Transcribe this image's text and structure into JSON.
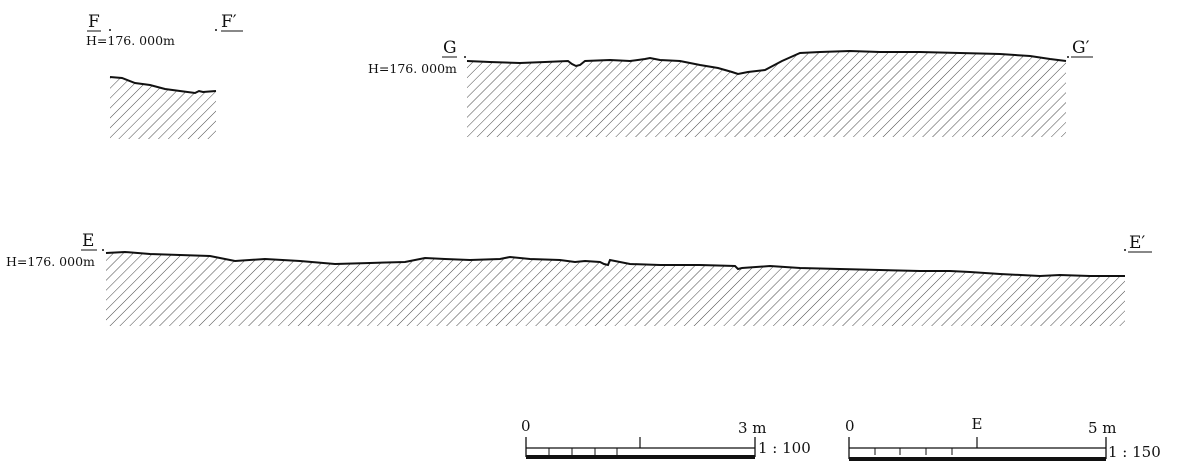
{
  "sections": [
    {
      "id": "F",
      "start_label": "F",
      "end_label": "F′",
      "elevation": "H=176. 000m"
    },
    {
      "id": "G",
      "start_label": "G",
      "end_label": "G′",
      "elevation": "H=176. 000m"
    },
    {
      "id": "E",
      "start_label": "E",
      "end_label": "E′",
      "elevation": "H=176. 000m"
    }
  ],
  "scale_bars": [
    {
      "id": "scale-100",
      "start_label": "0",
      "mid_label": "",
      "end_label": "3 m",
      "ratio": "1 : 100"
    },
    {
      "id": "scale-150",
      "start_label": "0",
      "mid_label": "E",
      "end_label": "5 m",
      "ratio": "1 : 150"
    }
  ],
  "colors": {
    "line": "#111111",
    "hatch": "#333333",
    "background": "#ffffff"
  }
}
